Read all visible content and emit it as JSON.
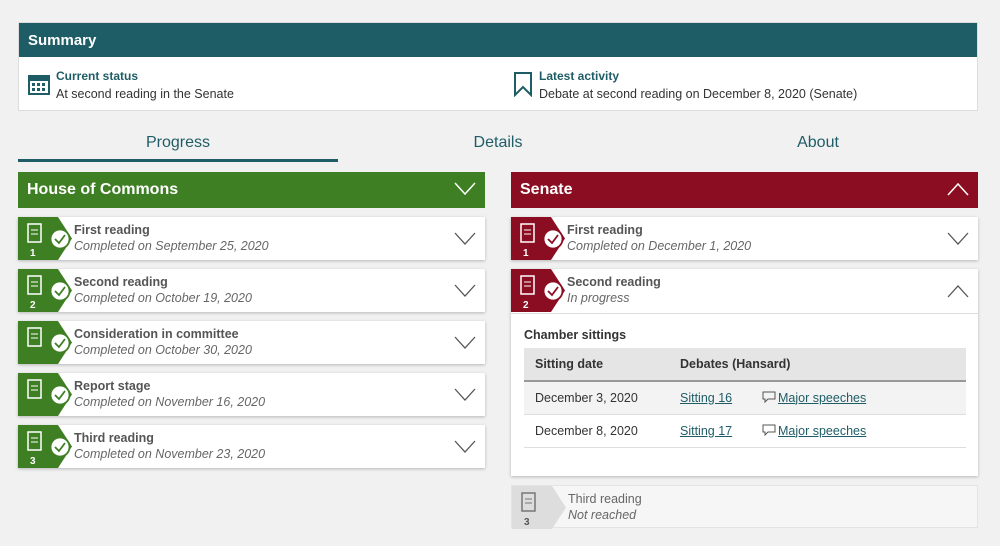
{
  "summary": {
    "title": "Summary",
    "status_label": "Current status",
    "status": "At second reading in the Senate",
    "activity_label": "Latest activity",
    "activity": "Debate at second reading on December 8, 2020 (Senate)"
  },
  "tabs": [
    "Progress",
    "Details",
    "About"
  ],
  "commons": {
    "title": "House of Commons",
    "stages": [
      {
        "number": "1",
        "name": "First reading",
        "status": "Completed on September 25, 2020"
      },
      {
        "number": "2",
        "name": "Second reading",
        "status": "Completed on October 19, 2020"
      },
      {
        "name": "Consideration in committee",
        "status": "Completed on October 30, 2020"
      },
      {
        "name": "Report stage",
        "status": "Completed on November 16, 2020"
      },
      {
        "number": "3",
        "name": "Third reading",
        "status": "Completed on November 23, 2020"
      }
    ]
  },
  "senate": {
    "title": "Senate",
    "stages": [
      {
        "number": "1",
        "name": "First reading",
        "status": "Completed on December 1, 2020"
      },
      {
        "number": "2",
        "name": "Second reading",
        "status": "In progress"
      },
      {
        "number": "3",
        "name": "Third reading",
        "status": "Not reached"
      }
    ],
    "sittings": {
      "title": "Chamber sittings",
      "headers": [
        "Sitting date",
        "Debates (Hansard)"
      ],
      "rows": [
        [
          "December 3, 2020",
          "Sitting 16",
          "Major speeches"
        ],
        [
          "December 8, 2020",
          "Sitting 17",
          "Major speeches"
        ]
      ]
    }
  }
}
